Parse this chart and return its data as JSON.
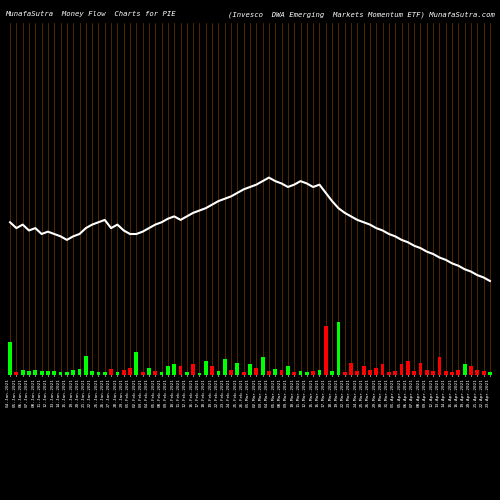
{
  "title_left": "MunafaSutra  Money Flow  Charts for PIE",
  "title_right": "(Invesco  DWA Emerging  Markets Momentum ETF) MunafaSutra.com",
  "bg_color": "#000000",
  "bar_color_pos": "#00ff00",
  "bar_color_neg": "#ff0000",
  "grid_color": "#8B4500",
  "line_color": "#ffffff",
  "bar_values": [
    9.5,
    0.8,
    1.5,
    1.2,
    1.3,
    1.1,
    1.2,
    1.0,
    0.9,
    0.8,
    1.5,
    1.8,
    5.5,
    1.0,
    0.9,
    0.8,
    1.8,
    0.9,
    1.5,
    2.0,
    6.5,
    0.8,
    2.0,
    1.2,
    0.9,
    2.5,
    3.0,
    2.5,
    0.9,
    3.0,
    0.5,
    4.0,
    2.5,
    1.2,
    4.5,
    1.5,
    3.5,
    0.8,
    3.0,
    2.0,
    5.0,
    1.2,
    1.8,
    1.3,
    2.5,
    0.8,
    1.2,
    0.9,
    1.0,
    1.5,
    14.0,
    1.2,
    15.0,
    0.8,
    3.5,
    1.2,
    2.5,
    1.5,
    2.0,
    3.0,
    0.8,
    1.2,
    3.0,
    4.0,
    1.0,
    3.5,
    1.5,
    1.2,
    5.0,
    1.2,
    0.8,
    1.5,
    3.0,
    2.5,
    1.3,
    1.0,
    0.8
  ],
  "bar_colors": [
    "g",
    "r",
    "g",
    "g",
    "g",
    "g",
    "g",
    "g",
    "g",
    "g",
    "g",
    "g",
    "g",
    "g",
    "g",
    "g",
    "r",
    "g",
    "r",
    "r",
    "g",
    "r",
    "g",
    "r",
    "g",
    "g",
    "g",
    "r",
    "g",
    "r",
    "g",
    "g",
    "r",
    "g",
    "g",
    "r",
    "g",
    "r",
    "g",
    "r",
    "g",
    "r",
    "g",
    "r",
    "g",
    "r",
    "g",
    "g",
    "r",
    "g",
    "r",
    "g",
    "g",
    "r",
    "r",
    "r",
    "r",
    "r",
    "r",
    "r",
    "r",
    "r",
    "r",
    "r",
    "r",
    "r",
    "r",
    "r",
    "r",
    "r",
    "r",
    "r",
    "g",
    "r",
    "r",
    "r",
    "g"
  ],
  "line_values": [
    83,
    82.5,
    82.8,
    82.3,
    82.5,
    82.0,
    82.2,
    82.0,
    81.8,
    81.5,
    81.8,
    82.0,
    82.5,
    82.8,
    83.0,
    83.2,
    82.5,
    82.8,
    82.3,
    82.0,
    82.0,
    82.2,
    82.5,
    82.8,
    83.0,
    83.3,
    83.5,
    83.2,
    83.5,
    83.8,
    84.0,
    84.2,
    84.5,
    84.8,
    85.0,
    85.2,
    85.5,
    85.8,
    86.0,
    86.2,
    86.5,
    86.8,
    86.5,
    86.3,
    86.0,
    86.2,
    86.5,
    86.3,
    86.0,
    86.2,
    85.5,
    84.8,
    84.2,
    83.8,
    83.5,
    83.2,
    83.0,
    82.8,
    82.5,
    82.3,
    82.0,
    81.8,
    81.5,
    81.3,
    81.0,
    80.8,
    80.5,
    80.3,
    80.0,
    79.8,
    79.5,
    79.3,
    79.0,
    78.8,
    78.5,
    78.3,
    78.0
  ],
  "labels": [
    "04-Jan-2021",
    "05-Jan-2021",
    "06-Jan-2021",
    "07-Jan-2021",
    "08-Jan-2021",
    "11-Jan-2021",
    "12-Jan-2021",
    "13-Jan-2021",
    "14-Jan-2021",
    "15-Jan-2021",
    "19-Jan-2021",
    "20-Jan-2021",
    "21-Jan-2021",
    "22-Jan-2021",
    "25-Jan-2021",
    "26-Jan-2021",
    "27-Jan-2021",
    "28-Jan-2021",
    "29-Jan-2021",
    "01-Feb-2021",
    "02-Feb-2021",
    "03-Feb-2021",
    "04-Feb-2021",
    "05-Feb-2021",
    "08-Feb-2021",
    "09-Feb-2021",
    "10-Feb-2021",
    "11-Feb-2021",
    "12-Feb-2021",
    "16-Feb-2021",
    "17-Feb-2021",
    "18-Feb-2021",
    "19-Feb-2021",
    "22-Feb-2021",
    "23-Feb-2021",
    "24-Feb-2021",
    "25-Feb-2021",
    "26-Feb-2021",
    "01-Mar-2021",
    "02-Mar-2021",
    "03-Mar-2021",
    "04-Mar-2021",
    "05-Mar-2021",
    "08-Mar-2021",
    "09-Mar-2021",
    "10-Mar-2021",
    "11-Mar-2021",
    "12-Mar-2021",
    "15-Mar-2021",
    "16-Mar-2021",
    "17-Mar-2021",
    "18-Mar-2021",
    "19-Mar-2021",
    "22-Mar-2021",
    "23-Mar-2021",
    "24-Mar-2021",
    "25-Mar-2021",
    "26-Mar-2021",
    "29-Mar-2021",
    "30-Mar-2021",
    "31-Mar-2021",
    "01-Apr-2021",
    "05-Apr-2021",
    "06-Apr-2021",
    "07-Apr-2021",
    "08-Apr-2021",
    "09-Apr-2021",
    "12-Apr-2021",
    "13-Apr-2021",
    "14-Apr-2021",
    "15-Apr-2021",
    "16-Apr-2021",
    "19-Apr-2021",
    "20-Apr-2021",
    "21-Apr-2021",
    "22-Apr-2021",
    "23-Apr-2021"
  ],
  "ylim_bar": [
    0,
    100
  ],
  "ylim_line": [
    70,
    100
  ],
  "figsize": [
    5.0,
    5.0
  ],
  "dpi": 100
}
